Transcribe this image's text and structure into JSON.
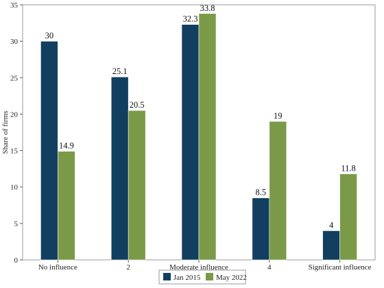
{
  "chart_data": {
    "type": "bar",
    "title": "",
    "xlabel": "",
    "ylabel": "Share of firms",
    "ylim": [
      0,
      35
    ],
    "yticks": [
      0,
      5,
      10,
      15,
      20,
      25,
      30,
      35
    ],
    "categories": [
      "No influence",
      "2",
      "Moderate influence",
      "4",
      "Significant influence"
    ],
    "series": [
      {
        "name": "Jan 2015",
        "color": "#123f5f",
        "values": [
          30,
          25.1,
          32.3,
          8.5,
          4
        ]
      },
      {
        "name": "May 2022",
        "color": "#7a9a48",
        "values": [
          14.9,
          20.5,
          33.8,
          19,
          11.8
        ]
      }
    ],
    "grid": false,
    "legend_position": "bottom-center"
  }
}
